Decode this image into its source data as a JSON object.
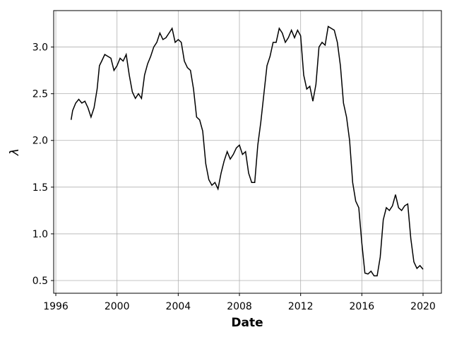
{
  "chart_data": {
    "type": "line",
    "xlabel": "Date",
    "ylabel": "λ",
    "x": [
      1997.0,
      1997.1,
      1997.3,
      1997.5,
      1997.7,
      1997.9,
      1998.1,
      1998.3,
      1998.5,
      1998.7,
      1998.85,
      1999.0,
      1999.2,
      1999.4,
      1999.6,
      1999.8,
      2000.0,
      2000.2,
      2000.4,
      2000.6,
      2000.8,
      2001.0,
      2001.2,
      2001.4,
      2001.6,
      2001.8,
      2002.0,
      2002.2,
      2002.4,
      2002.6,
      2002.8,
      2003.0,
      2003.2,
      2003.4,
      2003.6,
      2003.8,
      2004.0,
      2004.2,
      2004.4,
      2004.6,
      2004.8,
      2005.0,
      2005.2,
      2005.4,
      2005.6,
      2005.8,
      2006.0,
      2006.2,
      2006.4,
      2006.6,
      2006.8,
      2007.0,
      2007.2,
      2007.4,
      2007.6,
      2007.8,
      2008.0,
      2008.2,
      2008.4,
      2008.6,
      2008.8,
      2009.0,
      2009.2,
      2009.4,
      2009.6,
      2009.8,
      2010.0,
      2010.2,
      2010.4,
      2010.6,
      2010.8,
      2011.0,
      2011.2,
      2011.4,
      2011.6,
      2011.8,
      2012.0,
      2012.2,
      2012.4,
      2012.6,
      2012.8,
      2013.0,
      2013.2,
      2013.4,
      2013.6,
      2013.8,
      2014.0,
      2014.2,
      2014.4,
      2014.6,
      2014.8,
      2015.0,
      2015.2,
      2015.4,
      2015.6,
      2015.8,
      2016.0,
      2016.2,
      2016.4,
      2016.6,
      2016.8,
      2017.0,
      2017.2,
      2017.4,
      2017.6,
      2017.8,
      2018.0,
      2018.2,
      2018.4,
      2018.6,
      2018.8,
      2019.0,
      2019.2,
      2019.4,
      2019.6,
      2019.8,
      2020.0
    ],
    "values": [
      2.22,
      2.32,
      2.4,
      2.44,
      2.4,
      2.42,
      2.35,
      2.25,
      2.35,
      2.55,
      2.8,
      2.85,
      2.92,
      2.9,
      2.88,
      2.75,
      2.8,
      2.88,
      2.85,
      2.92,
      2.7,
      2.52,
      2.45,
      2.5,
      2.45,
      2.7,
      2.82,
      2.9,
      3.0,
      3.05,
      3.15,
      3.08,
      3.1,
      3.15,
      3.2,
      3.05,
      3.08,
      3.05,
      2.85,
      2.78,
      2.75,
      2.55,
      2.25,
      2.22,
      2.1,
      1.75,
      1.58,
      1.52,
      1.55,
      1.48,
      1.65,
      1.78,
      1.88,
      1.8,
      1.85,
      1.92,
      1.95,
      1.85,
      1.88,
      1.65,
      1.55,
      1.55,
      1.95,
      2.2,
      2.5,
      2.8,
      2.9,
      3.05,
      3.05,
      3.2,
      3.15,
      3.05,
      3.1,
      3.18,
      3.1,
      3.18,
      3.12,
      2.7,
      2.55,
      2.58,
      2.42,
      2.6,
      3.0,
      3.05,
      3.02,
      3.22,
      3.2,
      3.18,
      3.05,
      2.8,
      2.4,
      2.25,
      2.0,
      1.55,
      1.35,
      1.28,
      0.9,
      0.58,
      0.57,
      0.6,
      0.55,
      0.55,
      0.75,
      1.15,
      1.28,
      1.25,
      1.3,
      1.42,
      1.28,
      1.25,
      1.3,
      1.32,
      0.95,
      0.7,
      0.63,
      0.66,
      0.62
    ],
    "color": "#000000",
    "xlim": [
      1995.86,
      2021.2
    ],
    "ylim": [
      0.364,
      3.39
    ],
    "xticks": [
      1996,
      2000,
      2004,
      2008,
      2012,
      2016,
      2020
    ],
    "yticks": [
      0.5,
      {
        "value": 1,
        "label": "1.0"
      },
      1.5,
      {
        "value": 2,
        "label": "2.0"
      },
      2.5,
      {
        "value": 3,
        "label": "3.0"
      }
    ],
    "grid": true
  }
}
